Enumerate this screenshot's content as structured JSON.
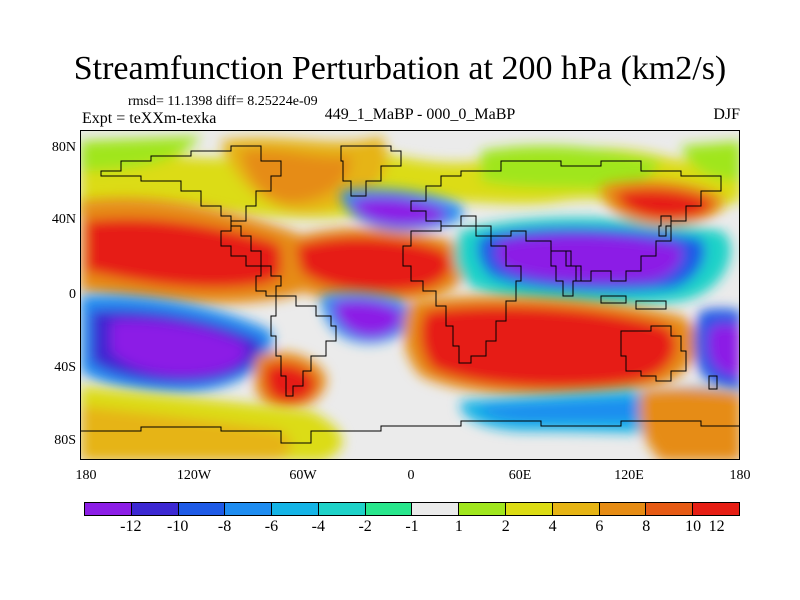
{
  "title": "Streamfunction Perturbation at 200 hPa (km2/s)",
  "stats": "rmsd= 11.1398 diff= 8.25224e-09",
  "left_label": "Expt = teXXm-texka",
  "center_label": "449_1_MaBP - 000_0_MaBP",
  "right_label": "DJF",
  "y_ticks": [
    "80N",
    "40N",
    "0",
    "40S",
    "80S"
  ],
  "x_ticks": [
    "180",
    "120W",
    "60W",
    "0",
    "60E",
    "120E",
    "180"
  ],
  "colorbar": {
    "colors": [
      "#8c1ee6",
      "#3c28d2",
      "#1e5ae6",
      "#1e8cf0",
      "#14b4e6",
      "#1ed2c8",
      "#28e68c",
      "#ebebeb",
      "#a0e61e",
      "#dcdc14",
      "#e6b414",
      "#e68c14",
      "#e65a14",
      "#e61e14"
    ],
    "labels": [
      "-12",
      "-10",
      "-8",
      "-6",
      "-4",
      "-2",
      "-1",
      "1",
      "2",
      "4",
      "6",
      "8",
      "10",
      "12"
    ]
  }
}
